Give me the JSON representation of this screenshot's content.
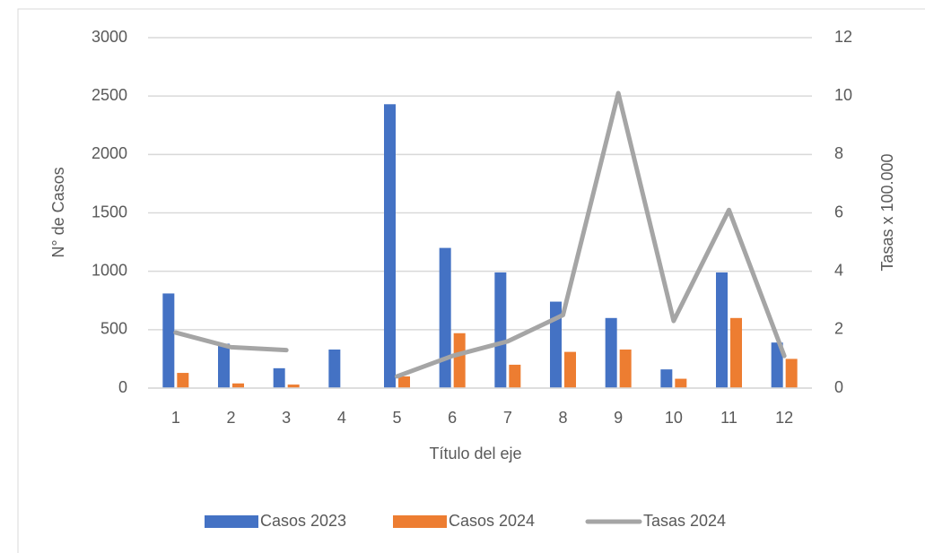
{
  "chart_data": {
    "type": "bar-line",
    "x_label": "Título del eje",
    "y_label": "N° de Casos",
    "y2_label": "Tasas x 100.000",
    "categories": [
      "1",
      "2",
      "3",
      "4",
      "5",
      "6",
      "7",
      "8",
      "9",
      "10",
      "11",
      "12"
    ],
    "series": [
      {
        "name": "Casos 2023",
        "type": "bar",
        "color": "#4472c4",
        "values": [
          810,
          380,
          170,
          330,
          2430,
          1200,
          990,
          740,
          600,
          160,
          990,
          390
        ]
      },
      {
        "name": "Casos 2024",
        "type": "bar",
        "color": "#ed7d31",
        "values": [
          130,
          40,
          30,
          0,
          100,
          470,
          200,
          310,
          330,
          80,
          600,
          250
        ]
      },
      {
        "name": "Tasas 2024",
        "type": "line",
        "axis": "y2",
        "color": "#a5a5a5",
        "values": [
          1.9,
          1.4,
          1.3,
          null,
          0.4,
          1.1,
          1.6,
          2.5,
          10.1,
          2.3,
          6.1,
          1.1
        ]
      }
    ],
    "ylim": [
      0,
      3000
    ],
    "yticks": [
      0,
      500,
      1000,
      1500,
      2000,
      2500,
      3000
    ],
    "y2lim": [
      0,
      12
    ],
    "y2ticks": [
      0,
      2,
      4,
      6,
      8,
      10,
      12
    ],
    "grid": true,
    "legend": "bottom"
  }
}
